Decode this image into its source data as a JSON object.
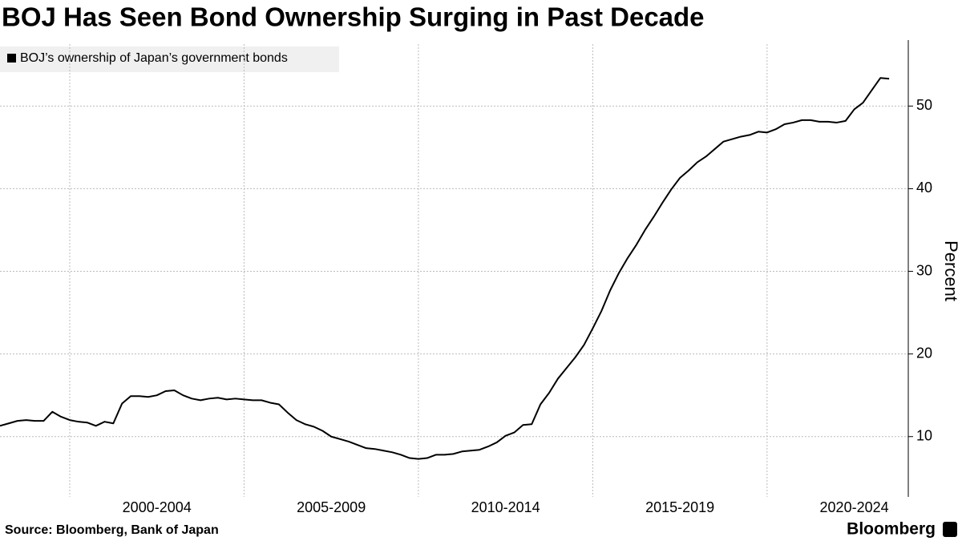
{
  "chart_data": {
    "type": "line",
    "title": "BOJ Has Seen Bond Ownership Surging in Past Decade",
    "y_label": "Percent",
    "source": "Source: Bloomberg, Bank of Japan",
    "brand": "Bloomberg",
    "x": [
      1998,
      1998.25,
      1998.5,
      1998.75,
      1999,
      1999.25,
      1999.5,
      1999.75,
      2000,
      2000.25,
      2000.5,
      2000.75,
      2001,
      2001.25,
      2001.5,
      2001.75,
      2002,
      2002.25,
      2002.5,
      2002.75,
      2003,
      2003.25,
      2003.5,
      2003.75,
      2004,
      2004.25,
      2004.5,
      2004.75,
      2005,
      2005.25,
      2005.5,
      2005.75,
      2006,
      2006.25,
      2006.5,
      2006.75,
      2007,
      2007.25,
      2007.5,
      2007.75,
      2008,
      2008.25,
      2008.5,
      2008.75,
      2009,
      2009.25,
      2009.5,
      2009.75,
      2010,
      2010.25,
      2010.5,
      2010.75,
      2011,
      2011.25,
      2011.5,
      2011.75,
      2012,
      2012.25,
      2012.5,
      2012.75,
      2013,
      2013.25,
      2013.5,
      2013.75,
      2014,
      2014.25,
      2014.5,
      2014.75,
      2015,
      2015.25,
      2015.5,
      2015.75,
      2016,
      2016.25,
      2016.5,
      2016.75,
      2017,
      2017.25,
      2017.5,
      2017.75,
      2018,
      2018.25,
      2018.5,
      2018.75,
      2019,
      2019.25,
      2019.5,
      2019.75,
      2020,
      2020.25,
      2020.5,
      2020.75,
      2021,
      2021.25,
      2021.5,
      2021.75,
      2022,
      2022.25,
      2022.5,
      2022.75,
      2023,
      2023.25,
      2023.5
    ],
    "series": [
      {
        "name": "BOJ’s ownership of Japan’s government bonds",
        "color": "#000000",
        "values": [
          11.3,
          11.6,
          11.9,
          12.0,
          11.9,
          11.9,
          13.0,
          12.4,
          12.0,
          11.8,
          11.7,
          11.3,
          11.8,
          11.6,
          14.0,
          14.9,
          14.9,
          14.8,
          15.0,
          15.5,
          15.6,
          15.0,
          14.6,
          14.4,
          14.6,
          14.7,
          14.5,
          14.6,
          14.5,
          14.4,
          14.4,
          14.1,
          13.9,
          12.9,
          12.0,
          11.5,
          11.2,
          10.7,
          10.0,
          9.7,
          9.4,
          9.0,
          8.6,
          8.5,
          8.3,
          8.1,
          7.8,
          7.4,
          7.3,
          7.4,
          7.8,
          7.8,
          7.9,
          8.2,
          8.3,
          8.4,
          8.8,
          9.3,
          10.1,
          10.5,
          11.4,
          11.5,
          13.9,
          15.3,
          17.0,
          18.3,
          19.6,
          21.1,
          23.1,
          25.2,
          27.7,
          29.8,
          31.6,
          33.2,
          35.0,
          36.6,
          38.3,
          39.9,
          41.3,
          42.2,
          43.2,
          43.9,
          44.8,
          45.7,
          46.0,
          46.3,
          46.5,
          46.9,
          46.8,
          47.2,
          47.8,
          48.0,
          48.3,
          48.3,
          48.1,
          48.1,
          48.0,
          48.2,
          49.6,
          50.4,
          51.9,
          53.4,
          53.3
        ]
      }
    ],
    "xlim": [
      1998,
      2024.05
    ],
    "xticks": [
      {
        "value": 2002.5,
        "label": "2000-2004"
      },
      {
        "value": 2007.5,
        "label": "2005-2009"
      },
      {
        "value": 2012.5,
        "label": "2010-2014"
      },
      {
        "value": 2017.5,
        "label": "2015-2019"
      },
      {
        "value": 2022.5,
        "label": "2020-2024"
      }
    ],
    "xgrid": [
      2000,
      2005,
      2010,
      2015,
      2020
    ],
    "ylim": [
      2.7,
      57.5
    ],
    "yticks": [
      10,
      20,
      30,
      40,
      50
    ],
    "grid": true
  }
}
